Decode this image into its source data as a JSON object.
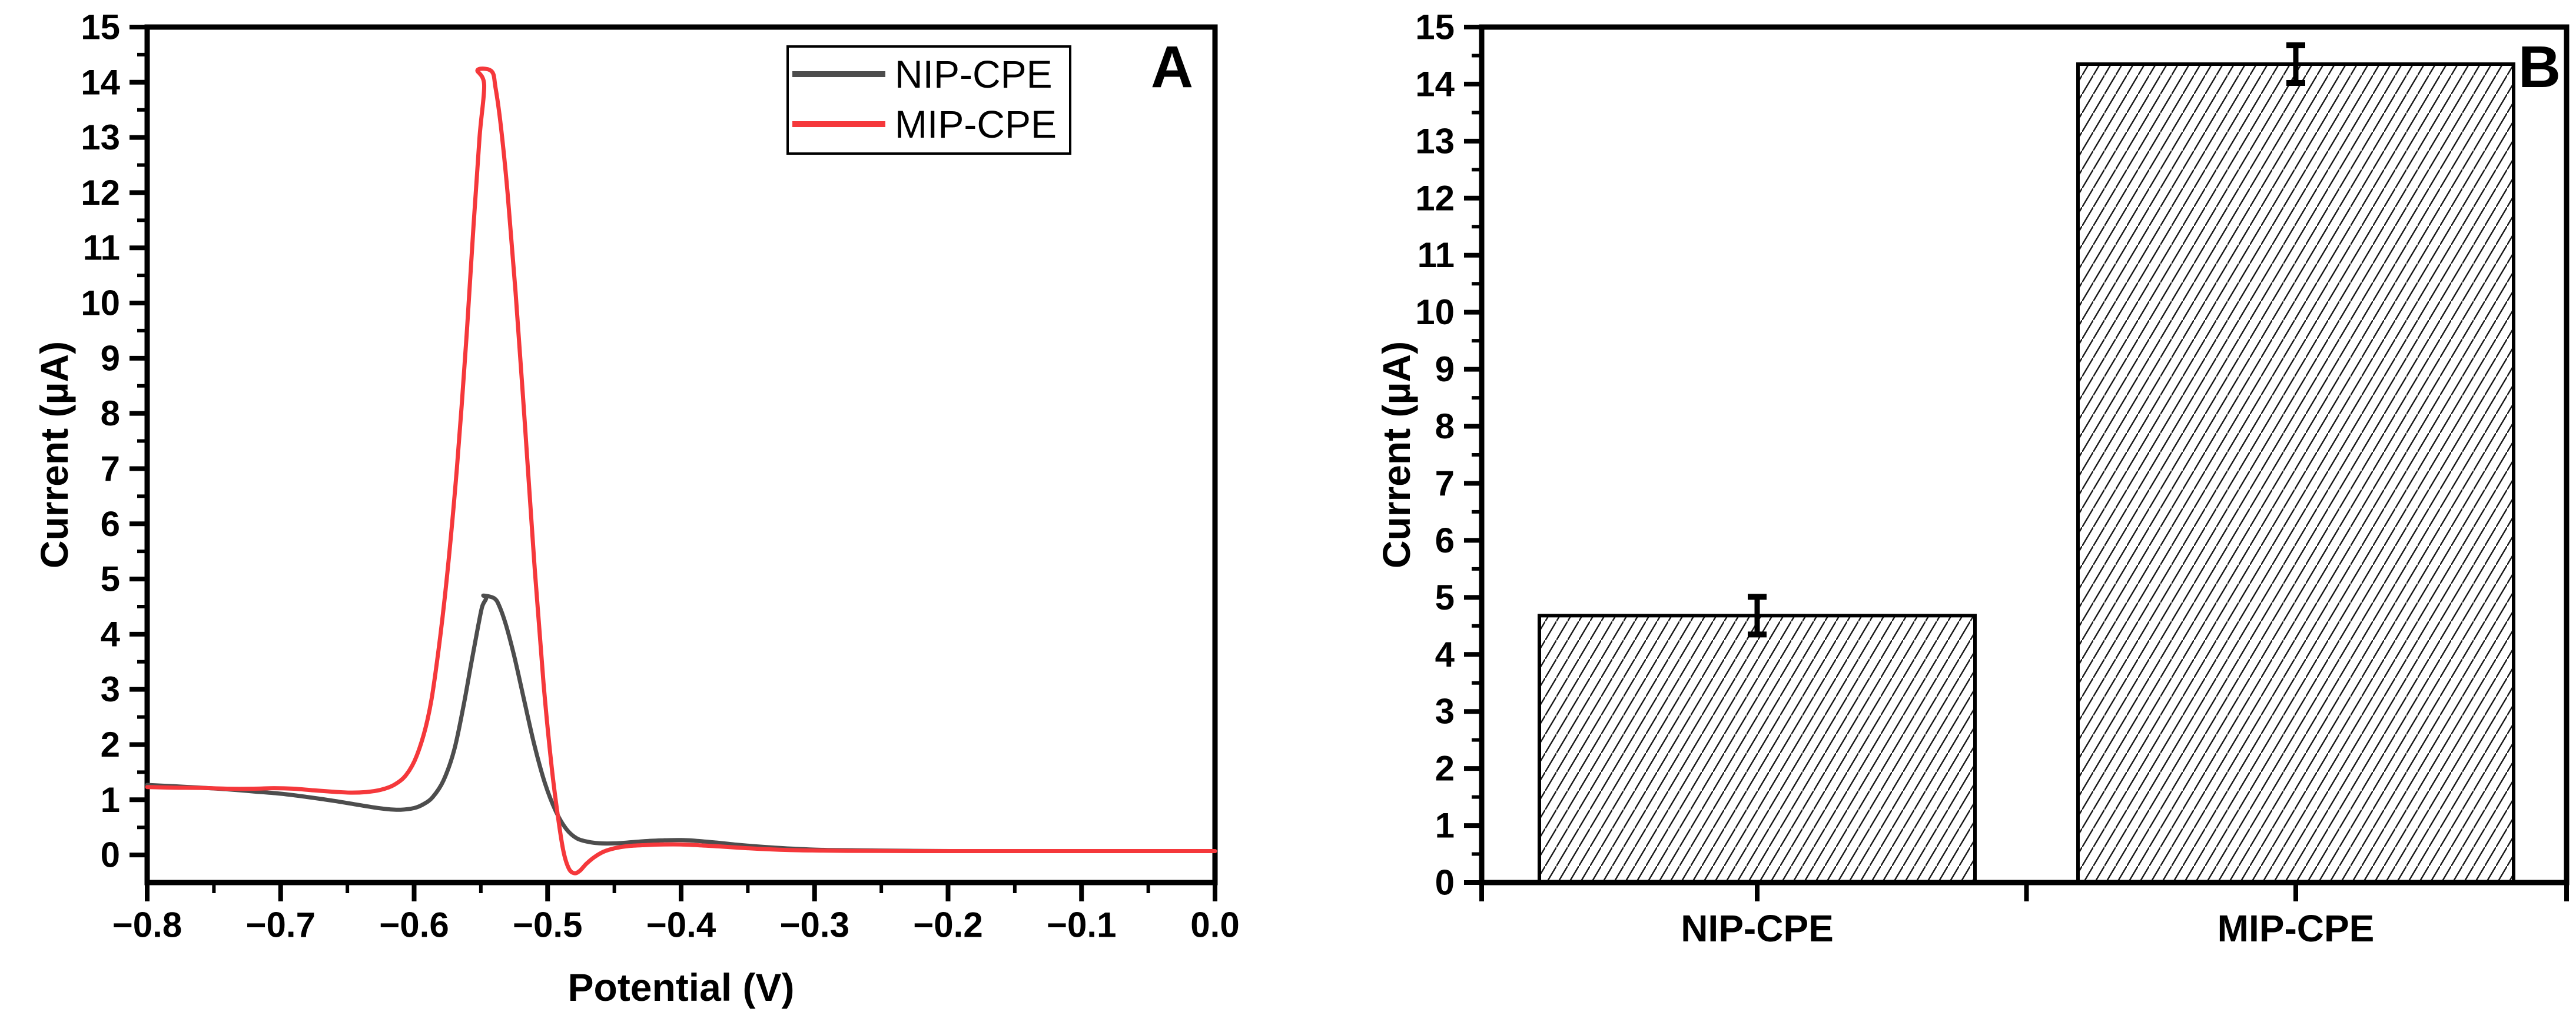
{
  "figure": {
    "background": "#ffffff",
    "text_color": "#000000"
  },
  "chart_data": [
    {
      "id": "A",
      "type": "line",
      "panel_label": "A",
      "xlabel": "Potential (V)",
      "ylabel": "Current (µA)",
      "xlim": [
        -0.8,
        0.0
      ],
      "ylim": [
        -0.5,
        15
      ],
      "x_tick_labels": [
        "−0.8",
        "−0.7",
        "−0.6",
        "−0.5",
        "−0.4",
        "−0.3",
        "−0.2",
        "−0.1",
        "0.0"
      ],
      "x_tick_values": [
        -0.8,
        -0.7,
        -0.6,
        -0.5,
        -0.4,
        -0.3,
        -0.2,
        -0.1,
        0.0
      ],
      "x_minor_step": 0.05,
      "y_tick_labels": [
        "0",
        "1",
        "2",
        "3",
        "4",
        "5",
        "6",
        "7",
        "8",
        "9",
        "10",
        "11",
        "12",
        "13",
        "14",
        "15"
      ],
      "y_tick_values": [
        0,
        1,
        2,
        3,
        4,
        5,
        6,
        7,
        8,
        9,
        10,
        11,
        12,
        13,
        14,
        15
      ],
      "y_minor_step": 0.5,
      "grid": false,
      "legend": {
        "position": "top-left-inside",
        "entries": [
          {
            "label": "NIP-CPE",
            "color": "#4d4d4d"
          },
          {
            "label": "MIP-CPE",
            "color": "#f5383b"
          }
        ]
      },
      "series": [
        {
          "name": "NIP-CPE",
          "color": "#4d4d4d",
          "points": [
            [
              -0.8,
              1.27
            ],
            [
              -0.78,
              1.245
            ],
            [
              -0.76,
              1.22
            ],
            [
              -0.74,
              1.19
            ],
            [
              -0.72,
              1.15
            ],
            [
              -0.7,
              1.11
            ],
            [
              -0.68,
              1.05
            ],
            [
              -0.66,
              0.98
            ],
            [
              -0.645,
              0.92
            ],
            [
              -0.63,
              0.86
            ],
            [
              -0.62,
              0.83
            ],
            [
              -0.61,
              0.82
            ],
            [
              -0.6,
              0.85
            ],
            [
              -0.593,
              0.92
            ],
            [
              -0.586,
              1.05
            ],
            [
              -0.578,
              1.35
            ],
            [
              -0.57,
              1.9
            ],
            [
              -0.563,
              2.7
            ],
            [
              -0.557,
              3.5
            ],
            [
              -0.552,
              4.15
            ],
            [
              -0.549,
              4.5
            ],
            [
              -0.546,
              4.65
            ],
            [
              -0.548,
              4.7
            ],
            [
              -0.54,
              4.65
            ],
            [
              -0.536,
              4.5
            ],
            [
              -0.531,
              4.15
            ],
            [
              -0.525,
              3.6
            ],
            [
              -0.518,
              2.85
            ],
            [
              -0.51,
              2.0
            ],
            [
              -0.502,
              1.3
            ],
            [
              -0.494,
              0.8
            ],
            [
              -0.486,
              0.47
            ],
            [
              -0.478,
              0.3
            ],
            [
              -0.469,
              0.235
            ],
            [
              -0.46,
              0.21
            ],
            [
              -0.45,
              0.21
            ],
            [
              -0.44,
              0.225
            ],
            [
              -0.427,
              0.25
            ],
            [
              -0.413,
              0.265
            ],
            [
              -0.4,
              0.27
            ],
            [
              -0.388,
              0.255
            ],
            [
              -0.374,
              0.225
            ],
            [
              -0.36,
              0.19
            ],
            [
              -0.346,
              0.16
            ],
            [
              -0.332,
              0.135
            ],
            [
              -0.318,
              0.115
            ],
            [
              -0.304,
              0.1
            ],
            [
              -0.29,
              0.09
            ],
            [
              -0.272,
              0.085
            ],
            [
              -0.252,
              0.08
            ],
            [
              -0.226,
              0.075
            ],
            [
              -0.198,
              0.07
            ],
            [
              -0.17,
              0.07
            ],
            [
              -0.14,
              0.07
            ],
            [
              -0.11,
              0.07
            ],
            [
              -0.08,
              0.07
            ],
            [
              -0.05,
              0.07
            ],
            [
              -0.02,
              0.07
            ],
            [
              0.0,
              0.07
            ]
          ]
        },
        {
          "name": "MIP-CPE",
          "color": "#f5383b",
          "points": [
            [
              -0.8,
              1.23
            ],
            [
              -0.78,
              1.22
            ],
            [
              -0.76,
              1.215
            ],
            [
              -0.74,
              1.2
            ],
            [
              -0.72,
              1.2
            ],
            [
              -0.705,
              1.21
            ],
            [
              -0.69,
              1.2
            ],
            [
              -0.675,
              1.17
            ],
            [
              -0.66,
              1.145
            ],
            [
              -0.648,
              1.13
            ],
            [
              -0.636,
              1.14
            ],
            [
              -0.625,
              1.18
            ],
            [
              -0.615,
              1.27
            ],
            [
              -0.606,
              1.45
            ],
            [
              -0.598,
              1.8
            ],
            [
              -0.59,
              2.45
            ],
            [
              -0.584,
              3.3
            ],
            [
              -0.576,
              4.9
            ],
            [
              -0.568,
              7.0
            ],
            [
              -0.561,
              9.3
            ],
            [
              -0.5555,
              11.4
            ],
            [
              -0.551,
              13.0
            ],
            [
              -0.5475,
              13.95
            ],
            [
              -0.5525,
              14.22
            ],
            [
              -0.542,
              14.2
            ],
            [
              -0.539,
              13.9
            ],
            [
              -0.535,
              13.2
            ],
            [
              -0.53,
              12.0
            ],
            [
              -0.524,
              10.2
            ],
            [
              -0.517,
              7.8
            ],
            [
              -0.51,
              5.3
            ],
            [
              -0.503,
              3.1
            ],
            [
              -0.497,
              1.6
            ],
            [
              -0.492,
              0.65
            ],
            [
              -0.488,
              0.05
            ],
            [
              -0.484,
              -0.25
            ],
            [
              -0.48,
              -0.33
            ],
            [
              -0.476,
              -0.29
            ],
            [
              -0.471,
              -0.16
            ],
            [
              -0.465,
              -0.04
            ],
            [
              -0.458,
              0.06
            ],
            [
              -0.45,
              0.12
            ],
            [
              -0.44,
              0.16
            ],
            [
              -0.426,
              0.18
            ],
            [
              -0.413,
              0.19
            ],
            [
              -0.4,
              0.19
            ],
            [
              -0.386,
              0.175
            ],
            [
              -0.371,
              0.155
            ],
            [
              -0.356,
              0.13
            ],
            [
              -0.341,
              0.11
            ],
            [
              -0.326,
              0.095
            ],
            [
              -0.311,
              0.085
            ],
            [
              -0.296,
              0.08
            ],
            [
              -0.276,
              0.075
            ],
            [
              -0.252,
              0.072
            ],
            [
              -0.226,
              0.07
            ],
            [
              -0.198,
              0.07
            ],
            [
              -0.17,
              0.07
            ],
            [
              -0.14,
              0.07
            ],
            [
              -0.11,
              0.07
            ],
            [
              -0.08,
              0.07
            ],
            [
              -0.05,
              0.07
            ],
            [
              -0.02,
              0.07
            ],
            [
              0.0,
              0.07
            ]
          ]
        }
      ]
    },
    {
      "id": "B",
      "type": "bar",
      "panel_label": "B",
      "xlabel": "",
      "ylabel": "Current (µA)",
      "ylim": [
        0,
        15
      ],
      "y_tick_labels": [
        "0",
        "1",
        "2",
        "3",
        "4",
        "5",
        "6",
        "7",
        "8",
        "9",
        "10",
        "11",
        "12",
        "13",
        "14",
        "15"
      ],
      "y_tick_values": [
        0,
        1,
        2,
        3,
        4,
        5,
        6,
        7,
        8,
        9,
        10,
        11,
        12,
        13,
        14,
        15
      ],
      "y_minor_step": 0.5,
      "categories": [
        "NIP-CPE",
        "MIP-CPE"
      ],
      "values": [
        4.68,
        14.35
      ],
      "errors": [
        0.33,
        0.33
      ],
      "bar_fill": "diagonal-hatch",
      "hatch_color": "#161616",
      "bar_edge_color": "#000000",
      "error_bar_color": "#000000"
    }
  ]
}
